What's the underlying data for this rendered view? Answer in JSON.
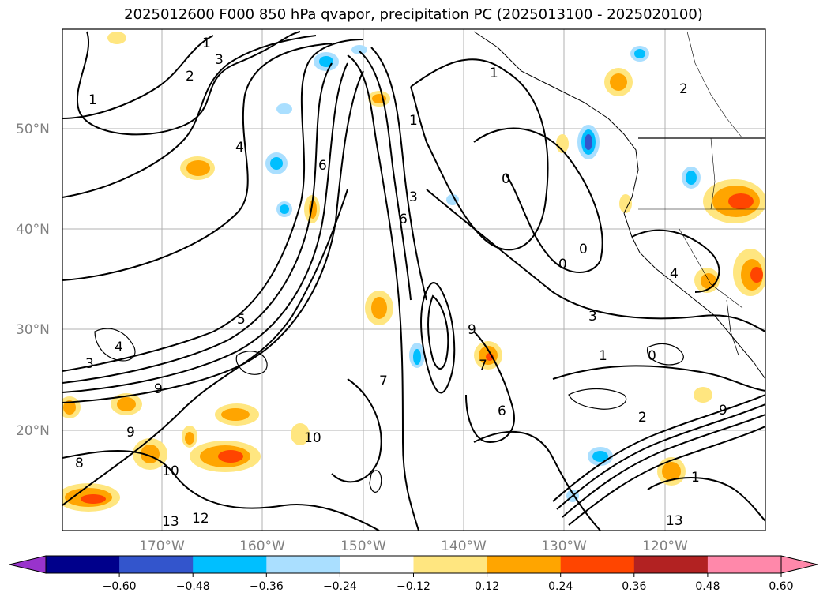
{
  "title": "2025012600 F000 850 hPa qvapor, precipitation PC (2025013100 - 2025020100)",
  "map": {
    "lat_labels": [
      "50°N",
      "40°N",
      "30°N",
      "20°N"
    ],
    "lon_labels": [
      "170°W",
      "160°W",
      "150°W",
      "140°W",
      "130°W",
      "120°W"
    ],
    "contour_labels": [
      "1",
      "2",
      "3",
      "2",
      "1",
      "4",
      "6",
      "1",
      "1",
      "0",
      "0",
      "0",
      "0",
      "3",
      "4",
      "1",
      "3",
      "6",
      "9",
      "7",
      "6",
      "2",
      "9",
      "10",
      "13",
      "12",
      "13",
      "10",
      "9",
      "8",
      "7",
      "5",
      "4",
      "3",
      "9",
      "2",
      "1"
    ]
  },
  "colorbar": {
    "ticks": [
      "−0.60",
      "−0.48",
      "−0.36",
      "−0.24",
      "−0.12",
      "0.12",
      "0.24",
      "0.36",
      "0.48",
      "0.60"
    ],
    "colors": [
      "#9933cc",
      "#00008b",
      "#3355cc",
      "#00bfff",
      "#aadfff",
      "#ffffff",
      "#ffe680",
      "#ffa500",
      "#ff4500",
      "#b22222",
      "#ff88aa",
      "#ff88aa"
    ]
  }
}
